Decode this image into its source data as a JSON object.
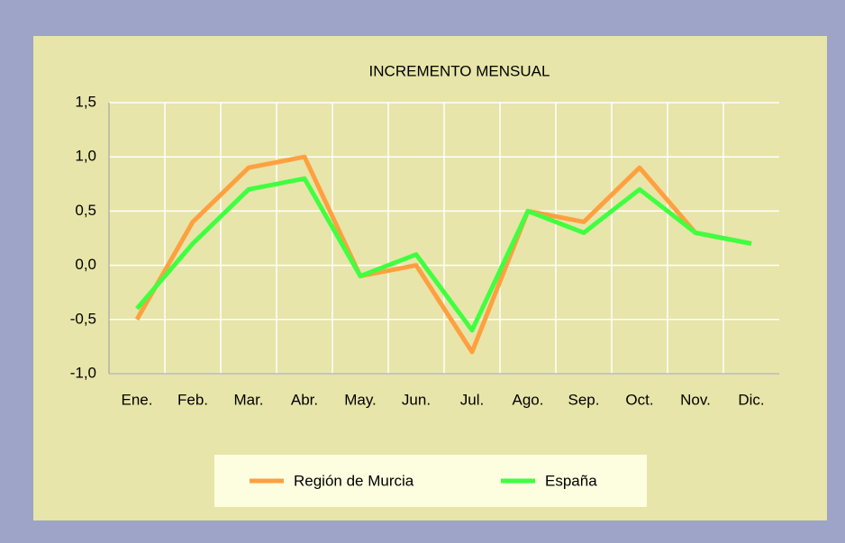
{
  "chart_data": {
    "type": "line",
    "title": "INCREMENTO MENSUAL",
    "categories": [
      "Ene.",
      "Feb.",
      "Mar.",
      "Abr.",
      "May.",
      "Jun.",
      "Jul.",
      "Ago.",
      "Sep.",
      "Oct.",
      "Nov.",
      "Dic."
    ],
    "series": [
      {
        "name": "Región de Murcia",
        "color": "#ffa040",
        "values": [
          -0.5,
          0.4,
          0.9,
          1.0,
          -0.1,
          0.0,
          -0.8,
          0.5,
          0.4,
          0.9,
          0.3,
          0.2
        ]
      },
      {
        "name": "España",
        "color": "#40ff40",
        "values": [
          -0.4,
          0.2,
          0.7,
          0.8,
          -0.1,
          0.1,
          -0.6,
          0.5,
          0.3,
          0.7,
          0.3,
          0.2
        ]
      }
    ],
    "ylim": [
      -1.0,
      1.5
    ],
    "yticks": [
      {
        "value": -1.0,
        "label": "-1,0"
      },
      {
        "value": -0.5,
        "label": "-0,5"
      },
      {
        "value": 0.0,
        "label": "0,0"
      },
      {
        "value": 0.5,
        "label": "0,5"
      },
      {
        "value": 1.0,
        "label": "1,0"
      },
      {
        "value": 1.5,
        "label": "1,5"
      }
    ],
    "grid": true,
    "legend": "bottom"
  }
}
